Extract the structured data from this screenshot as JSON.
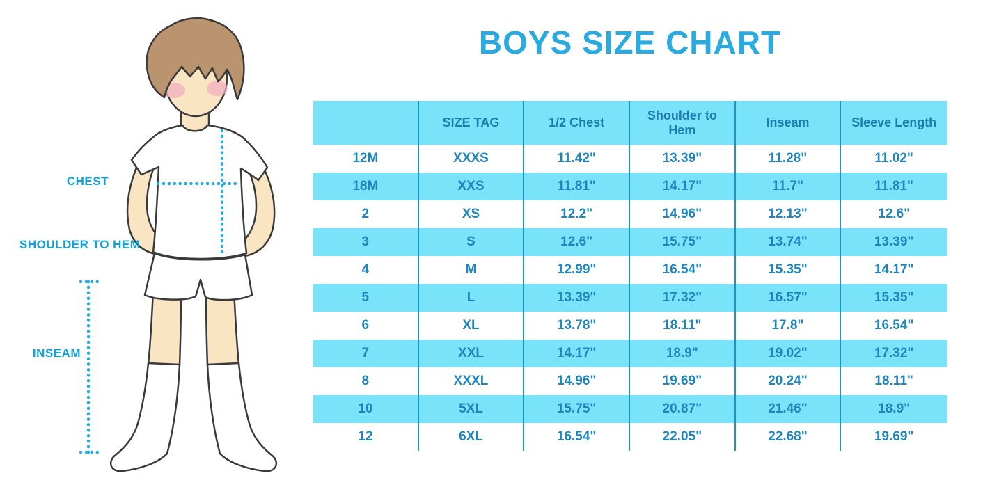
{
  "title": "BOYS SIZE CHART",
  "figure": {
    "labels": {
      "chest": "CHEST",
      "shoulder_to_hem": "SHOULDER TO HEM",
      "inseam": "INSEAM"
    },
    "description": "cartoon boy in white t-shirt, shorts and knee socks with dotted measurement lines"
  },
  "colors": {
    "title_blue": "#29ABE2",
    "label_blue": "#0DA2DC",
    "band_cyan": "#79E3F9",
    "divider_blue": "#1E93C6",
    "header_text": "#1D7DAF",
    "cell_text": "#1E86BC",
    "dotted_line": "#29ABE2",
    "skin": "#FAE5C2",
    "hair": "#B9946E",
    "blush": "#F2AFBF",
    "outline": "#3A3A3A"
  },
  "chart_data": {
    "type": "table",
    "title": "BOYS SIZE CHART",
    "columns": [
      "",
      "SIZE TAG",
      "1/2 Chest",
      "Shoulder to Hem",
      "Inseam",
      "Sleeve Length"
    ],
    "rows": [
      [
        "12M",
        "XXXS",
        "11.42\"",
        "13.39\"",
        "11.28\"",
        "11.02\""
      ],
      [
        "18M",
        "XXS",
        "11.81\"",
        "14.17\"",
        "11.7\"",
        "11.81\""
      ],
      [
        "2",
        "XS",
        "12.2\"",
        "14.96\"",
        "12.13\"",
        "12.6\""
      ],
      [
        "3",
        "S",
        "12.6\"",
        "15.75\"",
        "13.74\"",
        "13.39\""
      ],
      [
        "4",
        "M",
        "12.99\"",
        "16.54\"",
        "15.35\"",
        "14.17\""
      ],
      [
        "5",
        "L",
        "13.39\"",
        "17.32\"",
        "16.57\"",
        "15.35\""
      ],
      [
        "6",
        "XL",
        "13.78\"",
        "18.11\"",
        "17.8\"",
        "16.54\""
      ],
      [
        "7",
        "XXL",
        "14.17\"",
        "18.9\"",
        "19.02\"",
        "17.32\""
      ],
      [
        "8",
        "XXXL",
        "14.96\"",
        "19.69\"",
        "20.24\"",
        "18.11\""
      ],
      [
        "10",
        "5XL",
        "15.75\"",
        "20.87\"",
        "21.46\"",
        "18.9\""
      ],
      [
        "12",
        "6XL",
        "16.54\"",
        "22.05\"",
        "22.68\"",
        "19.69\""
      ]
    ],
    "layout": {
      "striped": true,
      "stripe_start": "white",
      "grid": "vertical dividers only"
    }
  }
}
